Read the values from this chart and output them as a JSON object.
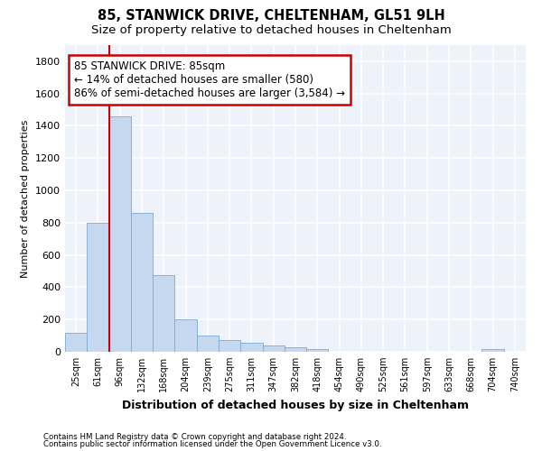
{
  "title": "85, STANWICK DRIVE, CHELTENHAM, GL51 9LH",
  "subtitle": "Size of property relative to detached houses in Cheltenham",
  "xlabel": "Distribution of detached houses by size in Cheltenham",
  "ylabel": "Number of detached properties",
  "bar_labels": [
    "25sqm",
    "61sqm",
    "96sqm",
    "132sqm",
    "168sqm",
    "204sqm",
    "239sqm",
    "275sqm",
    "311sqm",
    "347sqm",
    "382sqm",
    "418sqm",
    "454sqm",
    "490sqm",
    "525sqm",
    "561sqm",
    "597sqm",
    "633sqm",
    "668sqm",
    "704sqm",
    "740sqm"
  ],
  "bar_values": [
    120,
    800,
    1460,
    860,
    475,
    200,
    100,
    70,
    55,
    40,
    30,
    15,
    0,
    0,
    0,
    0,
    0,
    0,
    0,
    15,
    0
  ],
  "bar_color": "#c5d8f0",
  "bar_edge_color": "#7aabcf",
  "vline_color": "#cc0000",
  "annotation_text": "85 STANWICK DRIVE: 85sqm\n← 14% of detached houses are smaller (580)\n86% of semi-detached houses are larger (3,584) →",
  "annotation_box_color": "#ffffff",
  "annotation_box_edge": "#cc0000",
  "ylim": [
    0,
    1900
  ],
  "yticks": [
    0,
    200,
    400,
    600,
    800,
    1000,
    1200,
    1400,
    1600,
    1800
  ],
  "footer_line1": "Contains HM Land Registry data © Crown copyright and database right 2024.",
  "footer_line2": "Contains public sector information licensed under the Open Government Licence v3.0.",
  "bg_color": "#eef2fa",
  "grid_color": "#ffffff",
  "title_fontsize": 10.5,
  "subtitle_fontsize": 9.5,
  "xlabel_fontsize": 9,
  "ylabel_fontsize": 8
}
